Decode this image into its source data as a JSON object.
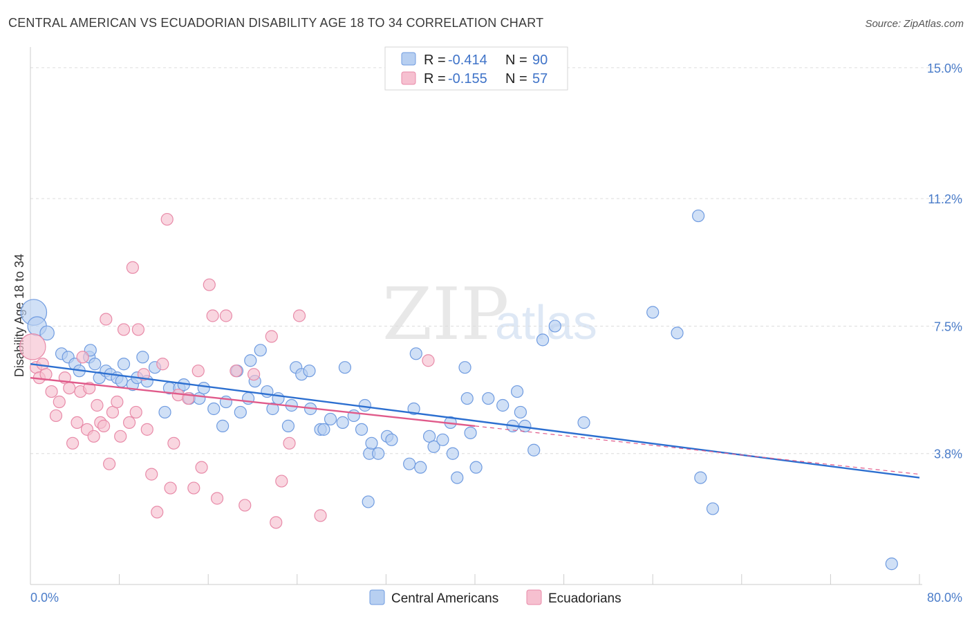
{
  "title": "CENTRAL AMERICAN VS ECUADORIAN DISABILITY AGE 18 TO 34 CORRELATION CHART",
  "source": "Source: ZipAtlas.com",
  "watermark": {
    "left": "ZIP",
    "right": "atlas"
  },
  "colors": {
    "blue_fill": "#b7cff1",
    "blue_stroke": "#6f9be0",
    "blue_line": "#2c6fd0",
    "pink_fill": "#f6c0d0",
    "pink_stroke": "#e88aa8",
    "pink_line": "#e05a8a",
    "grid": "#dcdcdc",
    "tick_text": "#4a7cc9"
  },
  "legend": {
    "rows": [
      {
        "r_label": "R =",
        "r_value": "-0.414",
        "n_label": "N =",
        "n_value": "90",
        "series": "blue"
      },
      {
        "r_label": "R =",
        "r_value": "-0.155",
        "n_label": "N =",
        "n_value": "57",
        "series": "pink"
      }
    ]
  },
  "bottom_legend": [
    "Central Americans",
    "Ecuadorians"
  ],
  "chart_data": {
    "type": "scatter",
    "title": "CENTRAL AMERICAN VS ECUADORIAN DISABILITY AGE 18 TO 34 CORRELATION CHART",
    "xlabel": "",
    "ylabel": "Disability Age 18 to 34",
    "xlim": [
      0,
      80
    ],
    "ylim": [
      0,
      15.6
    ],
    "x_tick_labels": [
      "0.0%",
      "80.0%"
    ],
    "y_ticks": [
      3.8,
      7.5,
      11.2,
      15.0
    ],
    "y_tick_labels": [
      "3.8%",
      "7.5%",
      "11.2%",
      "15.0%"
    ],
    "series": [
      {
        "name": "Central Americans",
        "color": "#6f9be0",
        "trend": {
          "x": [
            0,
            80
          ],
          "y": [
            6.4,
            3.1
          ]
        },
        "trend_solid_until": 80,
        "points": [
          [
            0.3,
            7.9,
            2.2
          ],
          [
            0.6,
            7.5,
            1.6
          ],
          [
            1.5,
            7.3,
            1.2
          ],
          [
            2.8,
            6.7,
            1
          ],
          [
            3.4,
            6.6,
            1
          ],
          [
            4,
            6.4,
            1
          ],
          [
            4.4,
            6.2,
            1
          ],
          [
            5.3,
            6.6,
            1
          ],
          [
            5.4,
            6.8,
            1
          ],
          [
            5.8,
            6.4,
            1
          ],
          [
            6.2,
            6.0,
            1
          ],
          [
            6.8,
            6.2,
            1
          ],
          [
            7.2,
            6.1,
            1
          ],
          [
            7.8,
            6.0,
            1
          ],
          [
            8.2,
            5.9,
            1
          ],
          [
            8.4,
            6.4,
            1
          ],
          [
            9.2,
            5.8,
            1
          ],
          [
            9.6,
            6.0,
            1
          ],
          [
            10.1,
            6.6,
            1
          ],
          [
            10.5,
            5.9,
            1
          ],
          [
            11.2,
            6.3,
            1
          ],
          [
            12.1,
            5.0,
            1
          ],
          [
            12.5,
            5.7,
            1
          ],
          [
            13.4,
            5.7,
            1
          ],
          [
            13.8,
            5.8,
            1
          ],
          [
            14.3,
            5.4,
            1
          ],
          [
            15.2,
            5.4,
            1
          ],
          [
            15.6,
            5.7,
            1
          ],
          [
            16.5,
            5.1,
            1
          ],
          [
            17.3,
            4.6,
            1
          ],
          [
            17.6,
            5.3,
            1
          ],
          [
            18.6,
            6.2,
            1
          ],
          [
            18.9,
            5.0,
            1
          ],
          [
            19.6,
            5.4,
            1
          ],
          [
            19.8,
            6.5,
            1
          ],
          [
            20.2,
            5.9,
            1
          ],
          [
            20.7,
            6.8,
            1
          ],
          [
            21.3,
            5.6,
            1
          ],
          [
            21.8,
            5.1,
            1
          ],
          [
            22.3,
            5.4,
            1
          ],
          [
            23.2,
            4.6,
            1
          ],
          [
            23.5,
            5.2,
            1
          ],
          [
            23.9,
            6.3,
            1
          ],
          [
            24.4,
            6.1,
            1
          ],
          [
            25.1,
            6.2,
            1
          ],
          [
            25.2,
            5.1,
            1
          ],
          [
            26.1,
            4.5,
            1
          ],
          [
            26.4,
            4.5,
            1
          ],
          [
            27.0,
            4.8,
            1
          ],
          [
            28.1,
            4.7,
            1
          ],
          [
            28.3,
            6.3,
            1
          ],
          [
            29.1,
            4.9,
            1
          ],
          [
            29.8,
            4.5,
            1
          ],
          [
            30.1,
            5.2,
            1
          ],
          [
            30.5,
            3.8,
            1
          ],
          [
            30.4,
            2.4,
            1
          ],
          [
            30.7,
            4.1,
            1
          ],
          [
            31.3,
            3.8,
            1
          ],
          [
            32.1,
            4.3,
            1
          ],
          [
            32.5,
            4.2,
            1
          ],
          [
            34.1,
            3.5,
            1
          ],
          [
            34.5,
            5.1,
            1
          ],
          [
            34.7,
            6.7,
            1
          ],
          [
            35.1,
            3.4,
            1
          ],
          [
            35.9,
            4.3,
            1
          ],
          [
            36.3,
            4.0,
            1
          ],
          [
            37.1,
            4.2,
            1
          ],
          [
            37.8,
            4.7,
            1
          ],
          [
            38.0,
            3.8,
            1
          ],
          [
            38.4,
            3.1,
            1
          ],
          [
            39.1,
            6.3,
            1
          ],
          [
            39.3,
            5.4,
            1
          ],
          [
            39.6,
            4.4,
            1
          ],
          [
            40.1,
            3.4,
            1
          ],
          [
            41.2,
            5.4,
            1
          ],
          [
            42.5,
            5.2,
            1
          ],
          [
            43.4,
            4.6,
            1
          ],
          [
            43.8,
            5.6,
            1
          ],
          [
            44.1,
            5.0,
            1
          ],
          [
            44.5,
            4.6,
            1
          ],
          [
            45.3,
            3.9,
            1
          ],
          [
            46.1,
            7.1,
            1
          ],
          [
            47.2,
            7.5,
            1
          ],
          [
            49.8,
            4.7,
            1
          ],
          [
            56.0,
            7.9,
            1
          ],
          [
            58.2,
            7.3,
            1
          ],
          [
            60.1,
            10.7,
            1
          ],
          [
            60.3,
            3.1,
            1
          ],
          [
            61.4,
            2.2,
            1
          ],
          [
            77.5,
            0.6,
            1
          ]
        ]
      },
      {
        "name": "Ecuadorians",
        "color": "#e88aa8",
        "trend": {
          "x": [
            0,
            80
          ],
          "y": [
            6.0,
            3.2
          ]
        },
        "trend_solid_until": 40,
        "points": [
          [
            0.2,
            6.9,
            2.2
          ],
          [
            0.5,
            6.3,
            1
          ],
          [
            0.8,
            6.0,
            1
          ],
          [
            1.1,
            6.4,
            1
          ],
          [
            1.4,
            6.1,
            1
          ],
          [
            1.9,
            5.6,
            1
          ],
          [
            2.3,
            4.9,
            1
          ],
          [
            2.6,
            5.3,
            1
          ],
          [
            3.1,
            6.0,
            1
          ],
          [
            3.5,
            5.7,
            1
          ],
          [
            3.8,
            4.1,
            1
          ],
          [
            4.2,
            4.7,
            1
          ],
          [
            4.5,
            5.6,
            1
          ],
          [
            4.7,
            6.6,
            1
          ],
          [
            5.1,
            4.5,
            1
          ],
          [
            5.3,
            5.7,
            1
          ],
          [
            5.7,
            4.3,
            1
          ],
          [
            6.0,
            5.2,
            1
          ],
          [
            6.3,
            4.7,
            1
          ],
          [
            6.6,
            4.6,
            1
          ],
          [
            6.8,
            7.7,
            1
          ],
          [
            7.1,
            3.5,
            1
          ],
          [
            7.4,
            5.0,
            1
          ],
          [
            7.8,
            5.3,
            1
          ],
          [
            8.1,
            4.3,
            1
          ],
          [
            8.4,
            7.4,
            1
          ],
          [
            8.9,
            4.7,
            1
          ],
          [
            9.2,
            9.2,
            1
          ],
          [
            9.5,
            5.0,
            1
          ],
          [
            9.7,
            7.4,
            1
          ],
          [
            10.2,
            6.1,
            1
          ],
          [
            10.5,
            4.5,
            1
          ],
          [
            10.9,
            3.2,
            1
          ],
          [
            11.4,
            2.1,
            1
          ],
          [
            11.9,
            6.4,
            1
          ],
          [
            12.3,
            10.6,
            1
          ],
          [
            12.6,
            2.8,
            1
          ],
          [
            12.9,
            4.1,
            1
          ],
          [
            13.3,
            5.5,
            1
          ],
          [
            14.2,
            5.4,
            1
          ],
          [
            14.7,
            2.8,
            1
          ],
          [
            15.1,
            6.2,
            1
          ],
          [
            15.4,
            3.4,
            1
          ],
          [
            16.1,
            8.7,
            1
          ],
          [
            16.4,
            7.8,
            1
          ],
          [
            16.8,
            2.5,
            1
          ],
          [
            17.6,
            7.8,
            1
          ],
          [
            18.5,
            6.2,
            1
          ],
          [
            19.3,
            2.3,
            1
          ],
          [
            20.1,
            6.1,
            1
          ],
          [
            21.7,
            7.2,
            1
          ],
          [
            22.1,
            1.8,
            1
          ],
          [
            22.6,
            3.0,
            1
          ],
          [
            23.3,
            4.1,
            1
          ],
          [
            24.2,
            7.8,
            1
          ],
          [
            26.1,
            2.0,
            1
          ],
          [
            35.8,
            6.5,
            1
          ]
        ]
      }
    ]
  }
}
